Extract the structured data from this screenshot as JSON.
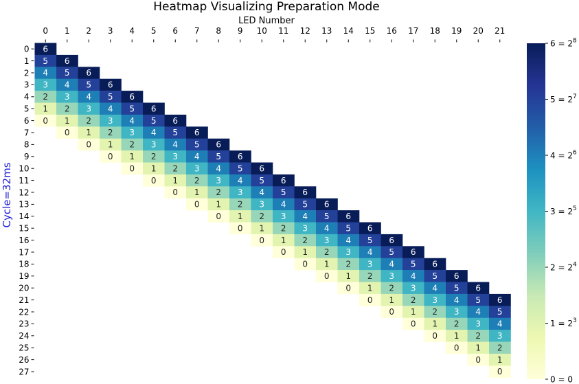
{
  "chart_data": {
    "type": "heatmap",
    "title": "Heatmap Visualizing Preparation Mode",
    "xlabel": "LED Number",
    "ylabel": "Cycle=32ms",
    "x_ticks": [
      0,
      1,
      2,
      3,
      4,
      5,
      6,
      7,
      8,
      9,
      10,
      11,
      12,
      13,
      14,
      15,
      16,
      17,
      18,
      19,
      20,
      21
    ],
    "y_ticks": [
      0,
      1,
      2,
      3,
      4,
      5,
      6,
      7,
      8,
      9,
      10,
      11,
      12,
      13,
      14,
      15,
      16,
      17,
      18,
      19,
      20,
      21,
      22,
      23,
      24,
      25,
      26,
      27
    ],
    "cell_rule": "value = 6 - (row - col) for 0 <= row - col <= 6, otherwise empty",
    "value_range": [
      0,
      6
    ],
    "colormap": "YlGnBu",
    "colorbar_labels": [
      "0 = 0",
      "1 = 2^3",
      "2 = 2^4",
      "3 = 2^5",
      "4 = 2^6",
      "5 = 2^7",
      "6 = 2^8"
    ],
    "colors": {
      "0": "#ffffd9",
      "1": "#e3f4b1",
      "2": "#97d6b9",
      "3": "#40b5c4",
      "4": "#1e7fb7",
      "5": "#24419a",
      "6": "#081d58"
    }
  }
}
